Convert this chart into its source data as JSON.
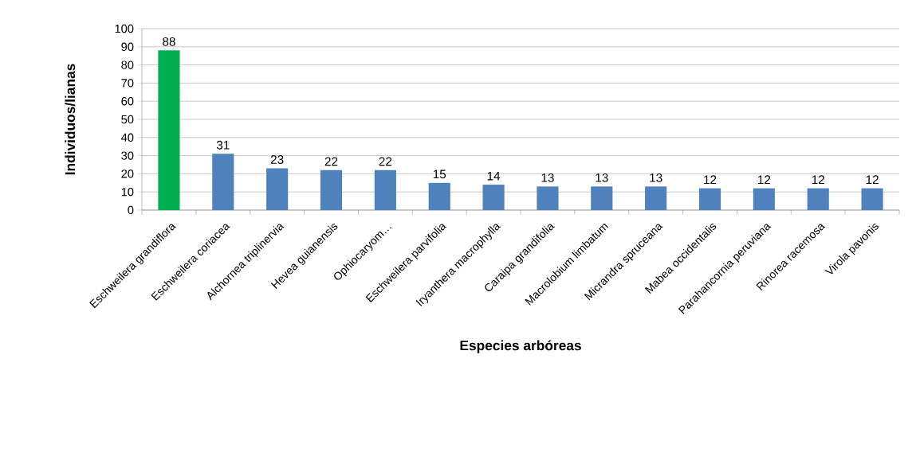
{
  "chart_data": {
    "type": "bar",
    "xlabel": "Especies arbóreas",
    "ylabel": "Individuos/lianas",
    "categories": [
      "Eschweilera grandiflora",
      "Eschweilera coriacea",
      "Alchornea triplinervia",
      "Hevea guianensis",
      "Ophiocaryom…",
      "Eschweilera parvifolia",
      "Iryanthera macrophylla",
      "Caraipa grandifolia",
      "Macrolobium limbatum",
      "Micrandra spruceana",
      "Mabea occidentalis",
      "Parahancornia peruviana",
      "Rinorea racemosa",
      "Virola pavonis"
    ],
    "values": [
      88,
      31,
      23,
      22,
      22,
      15,
      14,
      13,
      13,
      13,
      12,
      12,
      12,
      12
    ],
    "colors": [
      "#00b050",
      "#4f81bd",
      "#4f81bd",
      "#4f81bd",
      "#4f81bd",
      "#4f81bd",
      "#4f81bd",
      "#4f81bd",
      "#4f81bd",
      "#4f81bd",
      "#4f81bd",
      "#4f81bd",
      "#4f81bd",
      "#4f81bd"
    ],
    "ylim": [
      0,
      100
    ],
    "yticks": [
      0,
      10,
      20,
      30,
      40,
      50,
      60,
      70,
      80,
      90,
      100
    ],
    "grid": "y",
    "data_labels": true
  }
}
